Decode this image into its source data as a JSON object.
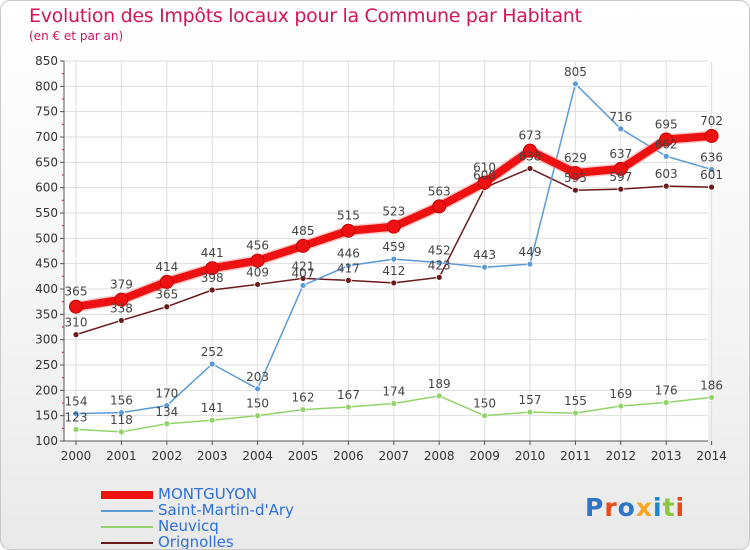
{
  "header": {
    "title": "Evolution des Impôts locaux pour la Commune par Habitant",
    "subtitle": "(en € et par an)"
  },
  "logo": {
    "text": "Proxiti",
    "letter_colors": [
      "#2e74c8",
      "#e64a19",
      "#2e74c8",
      "#f5a623",
      "#1f86c7",
      "#8cc63f",
      "#e64a19"
    ]
  },
  "chart_data": {
    "type": "line",
    "title": "Evolution des Impôts locaux pour la Commune par Habitant",
    "subtitle": "(en € et par an)",
    "x": [
      "2000",
      "2001",
      "2002",
      "2003",
      "2004",
      "2005",
      "2006",
      "2007",
      "2008",
      "2009",
      "2010",
      "2011",
      "2012",
      "2013",
      "2014"
    ],
    "ylim": [
      100,
      850
    ],
    "yticks": [
      100,
      150,
      200,
      250,
      300,
      350,
      400,
      450,
      500,
      550,
      600,
      650,
      700,
      750,
      800,
      850
    ],
    "grid": true,
    "legend_position": "bottom-left",
    "series": [
      {
        "name": "Orignolles",
        "color": "#6b1a1a",
        "values": [
          310,
          338,
          365,
          398,
          409,
          421,
          417,
          412,
          423,
          600,
          638,
          595,
          597,
          603,
          601
        ]
      },
      {
        "name": "Neuvicq",
        "color": "#92d46a",
        "values": [
          123,
          118,
          134,
          141,
          150,
          162,
          167,
          174,
          189,
          150,
          157,
          155,
          169,
          176,
          186
        ]
      },
      {
        "name": "Saint-Martin-d'Ary",
        "color": "#5b9bd5",
        "values": [
          154,
          156,
          170,
          252,
          203,
          407,
          446,
          459,
          452,
          443,
          449,
          805,
          716,
          662,
          636
        ]
      },
      {
        "name": "MONTGUYON",
        "color": "#ee1111",
        "values": [
          365,
          379,
          414,
          441,
          456,
          485,
          515,
          523,
          563,
          610,
          673,
          629,
          637,
          695,
          702
        ]
      }
    ],
    "legend_order": [
      "MONTGUYON",
      "Saint-Martin-d'Ary",
      "Neuvicq",
      "Orignolles"
    ]
  }
}
